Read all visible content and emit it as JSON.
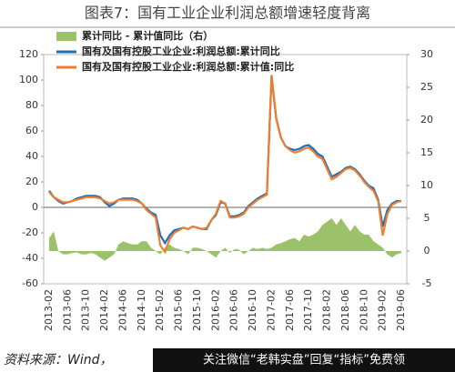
{
  "chart_data": {
    "type": "line",
    "title": "图表7：国有工业企业利润总额增速轻度背离",
    "categories": [
      "2013-02",
      null,
      null,
      null,
      "2013-06",
      null,
      null,
      null,
      "2013-10",
      null,
      null,
      null,
      "2014-02",
      null,
      null,
      null,
      "2014-06",
      null,
      null,
      null,
      "2014-10",
      null,
      null,
      null,
      "2015-02",
      null,
      null,
      null,
      "2015-06",
      null,
      null,
      null,
      "2015-10",
      null,
      null,
      null,
      "2016-02",
      null,
      null,
      null,
      "2016-06",
      null,
      null,
      null,
      "2016-10",
      null,
      null,
      null,
      "2017-02",
      null,
      null,
      null,
      "2017-06",
      null,
      null,
      null,
      "2017-10",
      null,
      null,
      null,
      "2018-02",
      null,
      null,
      null,
      "2018-06",
      null,
      null,
      null,
      "2018-10",
      null,
      null,
      null,
      "2019-02",
      null,
      null,
      null,
      "2019-06"
    ],
    "series": [
      {
        "name": "累计同比 - 累计值同比（右）",
        "color": "#9bc26a",
        "kind": "area",
        "axis": "y2",
        "values": [
          2,
          3,
          0,
          -0.5,
          -0.5,
          -0.3,
          -0.2,
          -0.5,
          -0.5,
          -0.3,
          -0.5,
          -1,
          -1.5,
          -1,
          -0.5,
          1,
          1.5,
          1.2,
          1,
          1,
          1.5,
          1.5,
          0.5,
          0,
          -0.5,
          0.5,
          1,
          0.5,
          0.3,
          0,
          -0.5,
          0.5,
          0.5,
          0.3,
          0,
          -0.5,
          -1,
          0,
          0.5,
          -0.3,
          0.3,
          0.2,
          -0.5,
          0,
          0.5,
          0.3,
          0.5,
          0.3,
          0.5,
          1,
          1.2,
          1.5,
          1.8,
          2,
          1.5,
          2.5,
          2.2,
          2.5,
          3,
          4,
          4.5,
          5,
          4,
          5,
          4,
          3,
          4,
          3,
          2.5,
          2.5,
          1.5,
          1,
          0.5,
          -0.5,
          -1,
          -0.5,
          -0.3
        ]
      },
      {
        "name": "国有及国有控股工业企业:利润总额:累计同比",
        "color": "#1f6fb5",
        "kind": "line",
        "values": [
          13,
          8,
          5,
          3,
          4,
          5,
          7,
          8,
          9,
          9,
          9,
          8,
          4,
          1,
          3,
          6,
          7,
          7,
          7,
          6,
          3,
          -1,
          -4,
          -6,
          -22,
          -28,
          -22,
          -18,
          -17,
          -16,
          -17,
          -15,
          -16,
          -17,
          -17,
          -10,
          -6,
          4,
          3,
          -7,
          -7,
          -6,
          -4,
          1,
          4,
          7,
          9,
          11,
          103,
          70,
          55,
          48,
          46,
          45,
          46,
          48,
          49,
          46,
          42,
          40,
          32,
          24,
          26,
          28,
          31,
          32,
          30,
          26,
          21,
          17,
          15,
          6,
          -15,
          -2,
          3,
          5,
          5
        ]
      },
      {
        "name": "国有及国有控股工业企业:利润总额:累计值:同比",
        "color": "#ed7d31",
        "kind": "line",
        "values": [
          12,
          8,
          6,
          4,
          4,
          5,
          6,
          7,
          8,
          8,
          8,
          7,
          5,
          3,
          4,
          6,
          6,
          6,
          6,
          5,
          3,
          -2,
          -5,
          -8,
          -30,
          -35,
          -25,
          -20,
          -18,
          -16,
          -17,
          -15,
          -16,
          -17,
          -16,
          -10,
          -5,
          5,
          3,
          -8,
          -8,
          -7,
          -5,
          0,
          3,
          6,
          8,
          10,
          104,
          70,
          55,
          48,
          45,
          43,
          44,
          46,
          47,
          44,
          40,
          38,
          30,
          22,
          24,
          27,
          30,
          31,
          29,
          25,
          20,
          16,
          13,
          5,
          -22,
          -5,
          2,
          4,
          5
        ]
      }
    ],
    "ylim": [
      -60,
      120
    ],
    "yticks": [
      -60,
      -40,
      -20,
      0,
      20,
      40,
      60,
      80,
      100,
      120
    ],
    "y2lim": [
      -5,
      30
    ],
    "y2ticks": [
      -5,
      0,
      5,
      10,
      15,
      20,
      25,
      30
    ],
    "grid": false
  },
  "source": "资料来源：Wind，",
  "watermark": "关注微信“老韩实盘”回复“指标”免费领"
}
